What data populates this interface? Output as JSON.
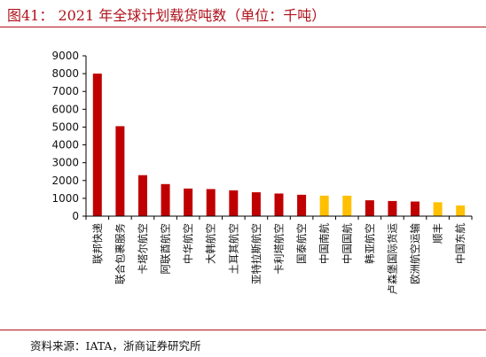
{
  "figure": {
    "title": "图41：  2021 年全球计划载货吨数（单位：千吨）",
    "source": "资料来源：IATA，浙商证券研究所"
  },
  "colors": {
    "red": "#c00000",
    "yellow": "#ffc000",
    "rule": "#b0121b"
  },
  "chart_data": {
    "type": "bar",
    "title": "2021 年全球计划载货吨数（单位：千吨）",
    "xlabel": "",
    "ylabel": "",
    "ylim": [
      0,
      9000
    ],
    "yticks": [
      0,
      1000,
      2000,
      3000,
      4000,
      5000,
      6000,
      7000,
      8000,
      9000
    ],
    "grid": false,
    "legend": "none",
    "categories": [
      "联邦快递",
      "联合包裹服务",
      "卡塔尔航空",
      "阿联酋航空",
      "中华航空",
      "大韩航空",
      "土耳其航空",
      "亚特拉斯航空",
      "卡利塔航空",
      "国泰航空",
      "中国南航",
      "中国国航",
      "韩亚航空",
      "卢森堡国际货运",
      "欧洲航空运输",
      "顺丰",
      "中国东航"
    ],
    "values": [
      8000,
      5050,
      2300,
      1800,
      1550,
      1520,
      1450,
      1340,
      1270,
      1200,
      1150,
      1150,
      890,
      850,
      820,
      780,
      600
    ],
    "bar_colors": [
      "red",
      "red",
      "red",
      "red",
      "red",
      "red",
      "red",
      "red",
      "red",
      "red",
      "yellow",
      "yellow",
      "red",
      "red",
      "red",
      "yellow",
      "yellow"
    ]
  }
}
